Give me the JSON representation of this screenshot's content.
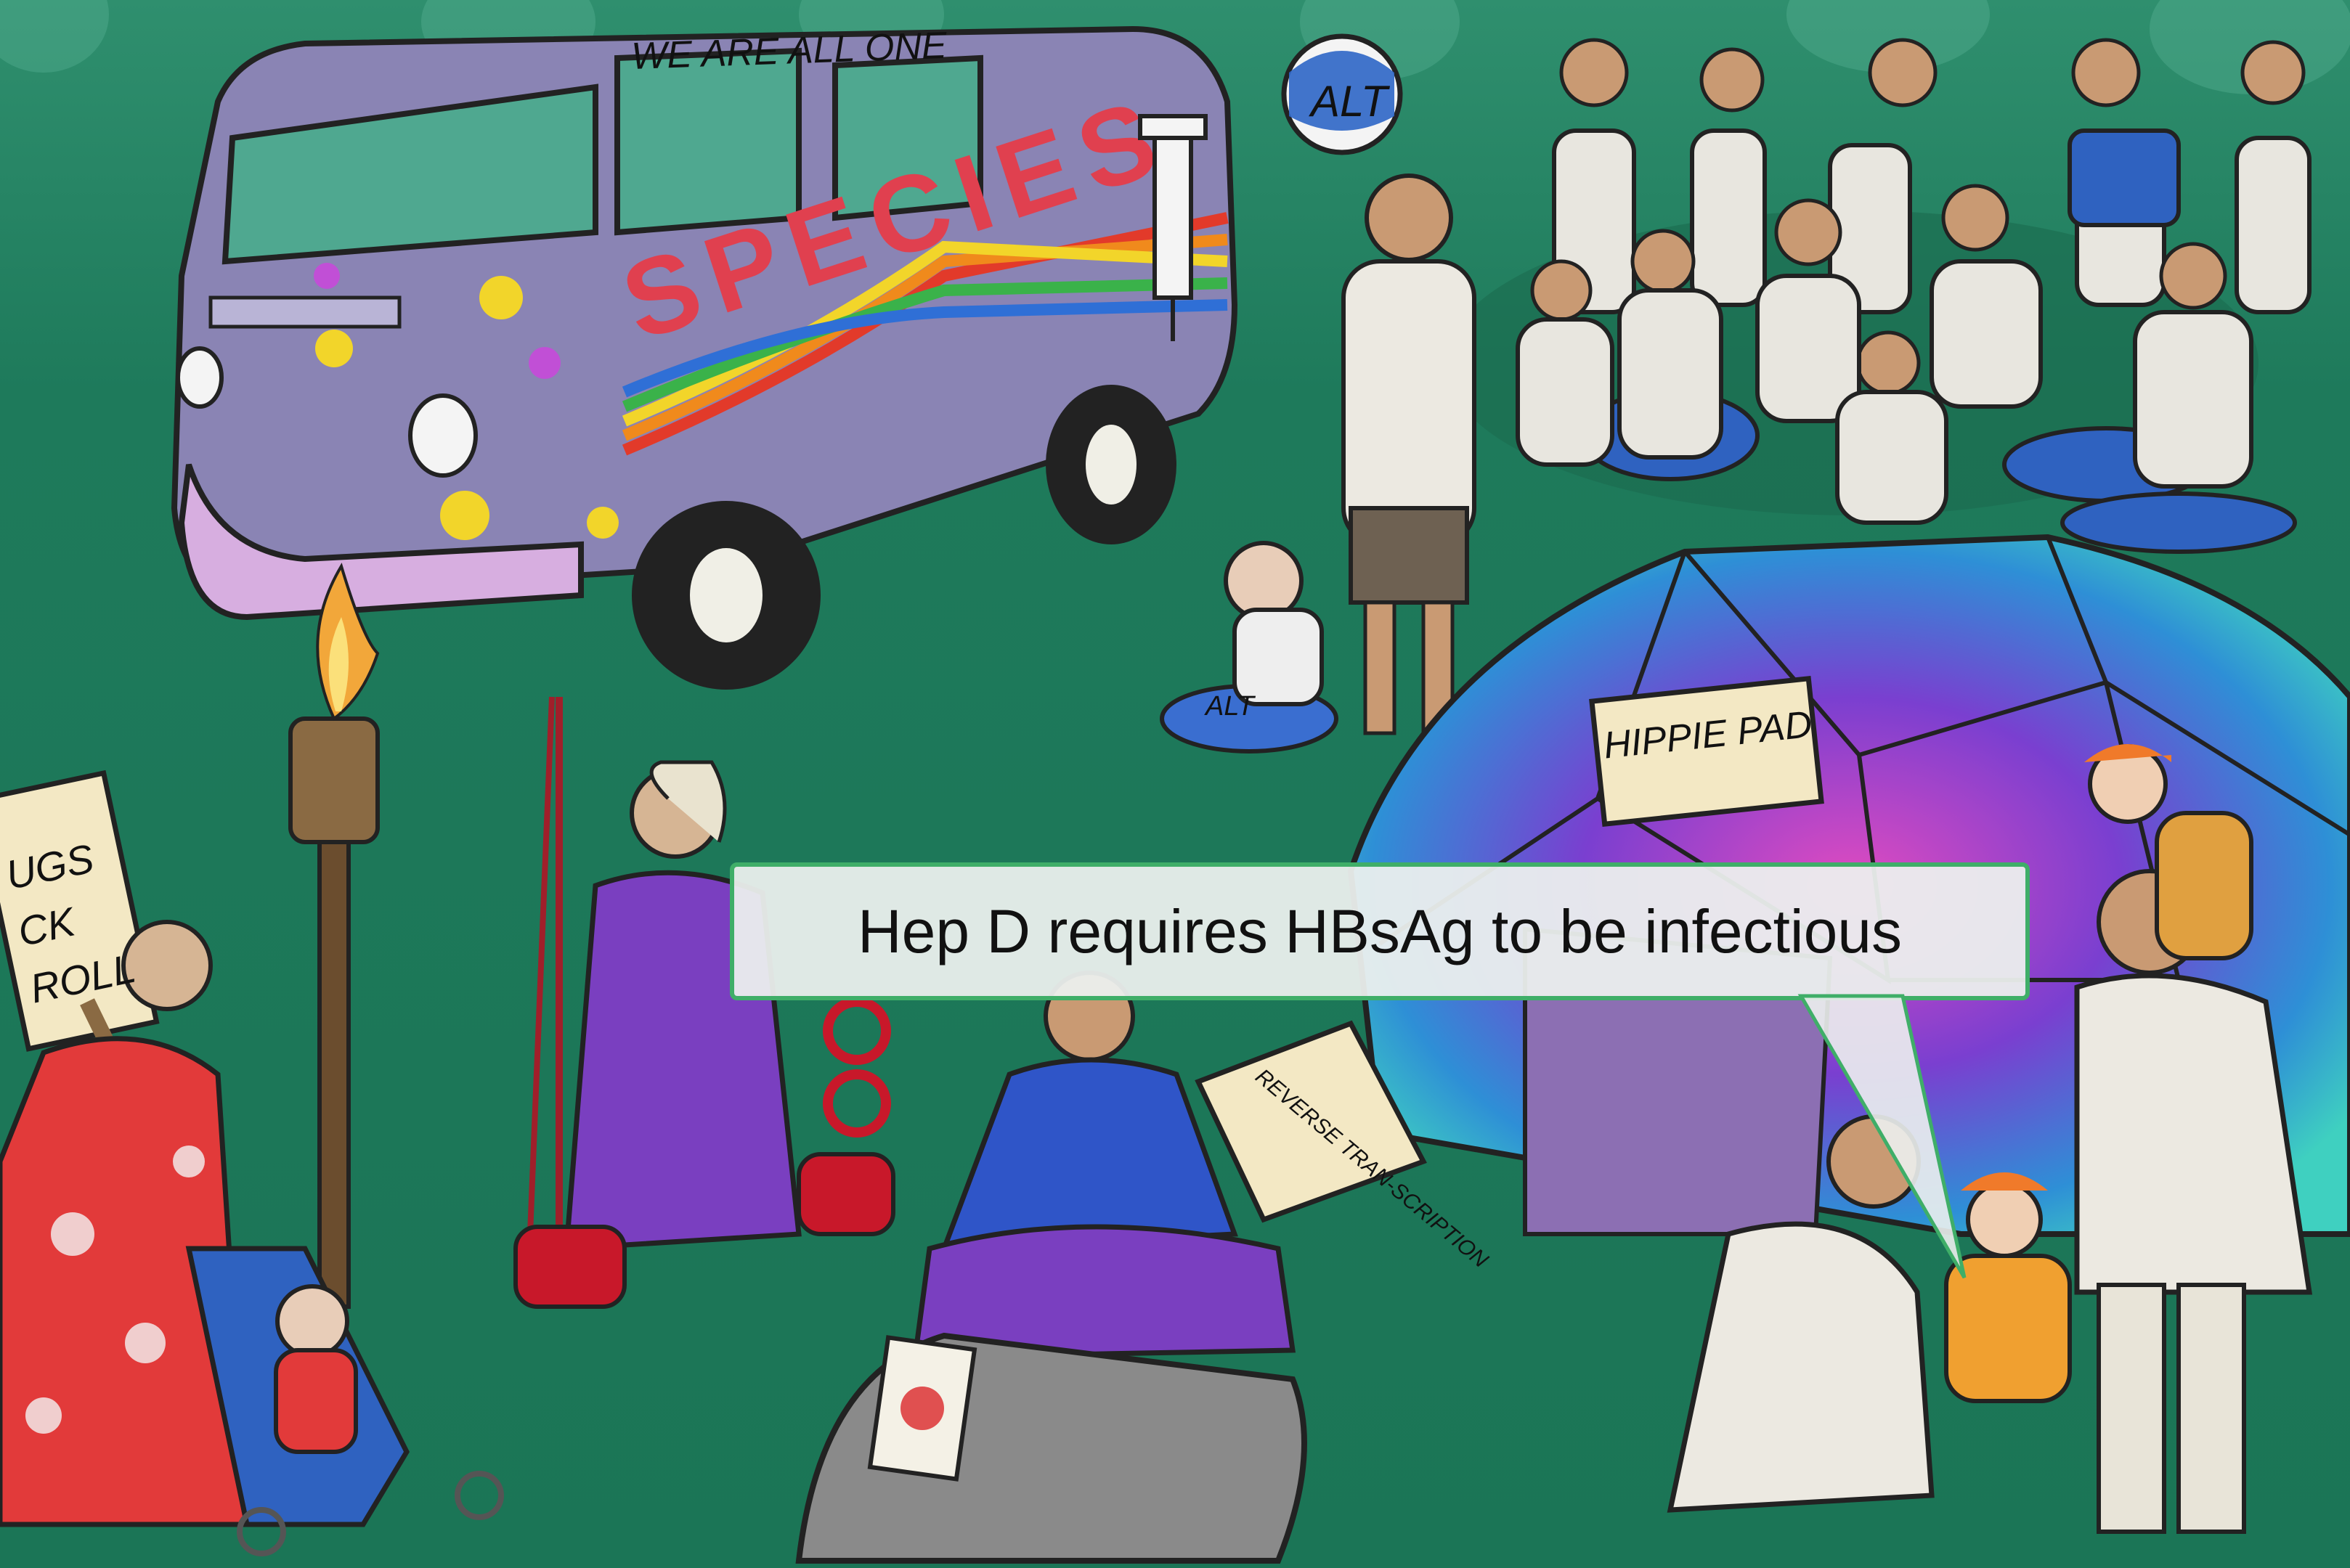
{
  "scene": {
    "van_slogan": "WE ARE ALL ONE",
    "van_graffiti": "SPECIES",
    "ball_label": "ALT",
    "baby_blanket_label": "ALT",
    "tent_sign": "HIPPIE PAD",
    "book_text": "REVERSE TRAN-SCRIPTION",
    "protest_sign_lines": [
      "UGS",
      "CK",
      "ROLL"
    ]
  },
  "caption": {
    "text": "Hep D requires HBsAg to be infectious"
  },
  "colors": {
    "grass": "#1f7a5c",
    "van": "#8a84b4",
    "caption_border": "#3fae68",
    "caption_fill": "#ecf0ee",
    "tent_pink": "#d93bbf",
    "tent_blue": "#3c6fd6"
  }
}
